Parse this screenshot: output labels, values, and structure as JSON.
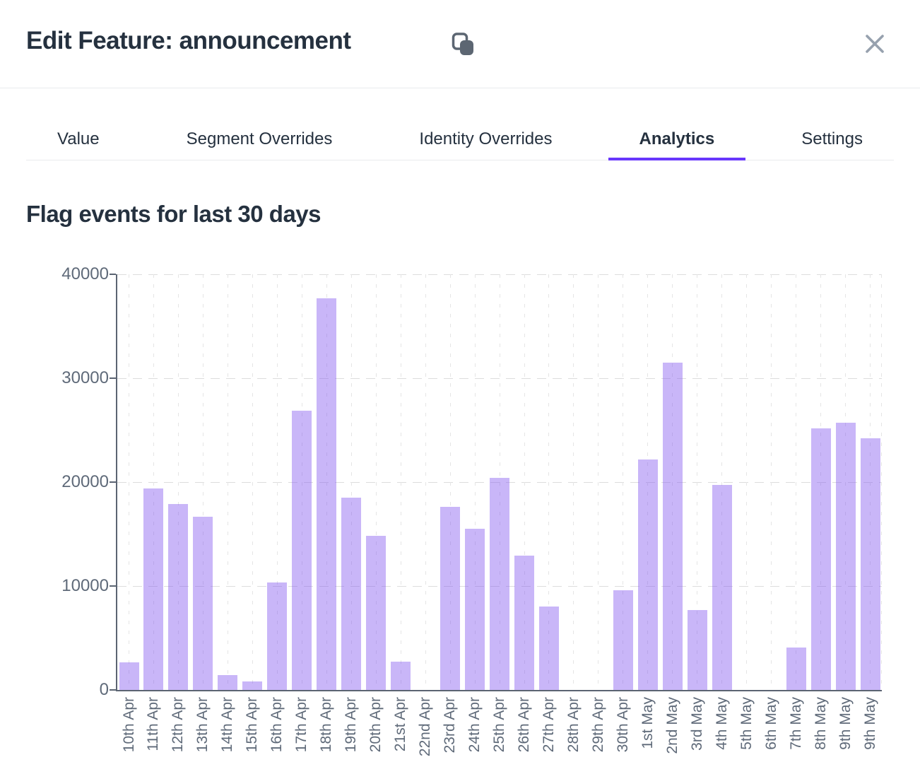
{
  "header": {
    "title": "Edit Feature: announcement",
    "copy_icon": "copy-icon",
    "close_icon": "close-icon"
  },
  "tabs": [
    {
      "label": "Value",
      "active": false
    },
    {
      "label": "Segment Overrides",
      "active": false
    },
    {
      "label": "Identity Overrides",
      "active": false
    },
    {
      "label": "Analytics",
      "active": true
    },
    {
      "label": "Settings",
      "active": false
    }
  ],
  "section": {
    "heading": "Flag events for last 30 days"
  },
  "chart_data": {
    "type": "bar",
    "title": "Flag events for last 30 days",
    "categories": [
      "10th Apr",
      "11th Apr",
      "12th Apr",
      "13th Apr",
      "14th Apr",
      "15th Apr",
      "16th Apr",
      "17th Apr",
      "18th Apr",
      "19th Apr",
      "20th Apr",
      "21st Apr",
      "22nd Apr",
      "23rd Apr",
      "24th Apr",
      "25th Apr",
      "26th Apr",
      "27th Apr",
      "28th Apr",
      "29th Apr",
      "30th Apr",
      "1st May",
      "2nd May",
      "3rd May",
      "4th May",
      "5th May",
      "6th May",
      "7th May",
      "8th May",
      "9th May",
      "9th May"
    ],
    "values": [
      2650,
      19400,
      17900,
      16700,
      1400,
      800,
      10350,
      26900,
      37700,
      18500,
      14800,
      2750,
      0,
      17600,
      15500,
      20400,
      12900,
      8000,
      0,
      0,
      9600,
      22200,
      31500,
      7700,
      19700,
      0,
      0,
      4100,
      25200,
      25700,
      24200
    ],
    "xlabel": "",
    "ylabel": "",
    "ylim": [
      0,
      40000
    ],
    "yticks": [
      0,
      10000,
      20000,
      30000,
      40000
    ],
    "ytick_labels": [
      "0",
      "10000",
      "20000",
      "30000",
      "40000"
    ],
    "grid": true,
    "legend": false,
    "bar_color_on_white": "#c9b7f8"
  },
  "colors": {
    "accent": "#6837fc",
    "heading_text": "#25313f",
    "axis": "#5b6472",
    "tick_label": "#5f6a79",
    "bar": "rgba(132,89,240,0.44)",
    "divider": "#e9ebee",
    "icon_gray": "#5c6672",
    "close_gray": "#97a1ae"
  }
}
